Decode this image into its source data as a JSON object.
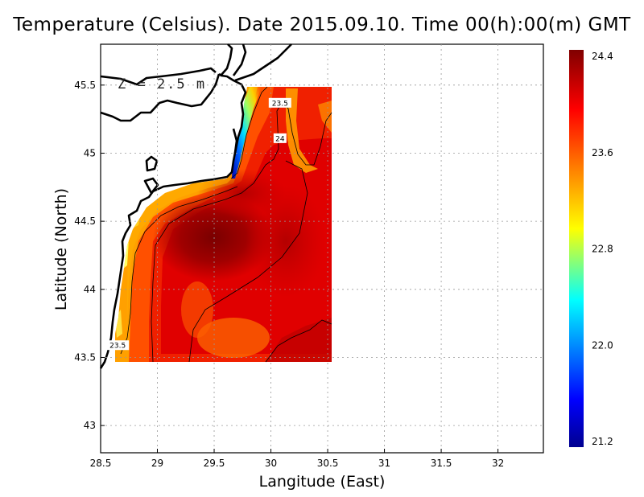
{
  "title": "Temperature (Celsius). Date 2015.09.10. Time 00(h):00(m)  GMT",
  "xlabel": "Langitude (East)",
  "ylabel": "Latitude (North)",
  "depth_label": "Z = 2.5 m",
  "map": {
    "lon_range": [
      28.5,
      32.4
    ],
    "lat_range": [
      42.8,
      45.8
    ],
    "x_ticks": [
      "28.5",
      "29",
      "29.5",
      "30",
      "30.5",
      "31",
      "31.5",
      "32"
    ],
    "y_ticks": [
      "43",
      "43.5",
      "44",
      "44.5",
      "45",
      "45.5"
    ],
    "grid": true,
    "contour_labels": [
      {
        "text": "23.5",
        "lon": 30.08,
        "lat": 45.37
      },
      {
        "text": "24",
        "lon": 30.08,
        "lat": 45.11
      },
      {
        "text": "23.5",
        "lon": 28.65,
        "lat": 43.59
      }
    ]
  },
  "colorbar": {
    "min": 21.2,
    "max": 24.4,
    "tick_labels": [
      "24.4",
      "23.6",
      "22.8",
      "22.0",
      "21.2"
    ],
    "colors": [
      "#00008f",
      "#0000ff",
      "#00ffff",
      "#ffff00",
      "#ff8000",
      "#ff0000",
      "#800000"
    ]
  }
}
